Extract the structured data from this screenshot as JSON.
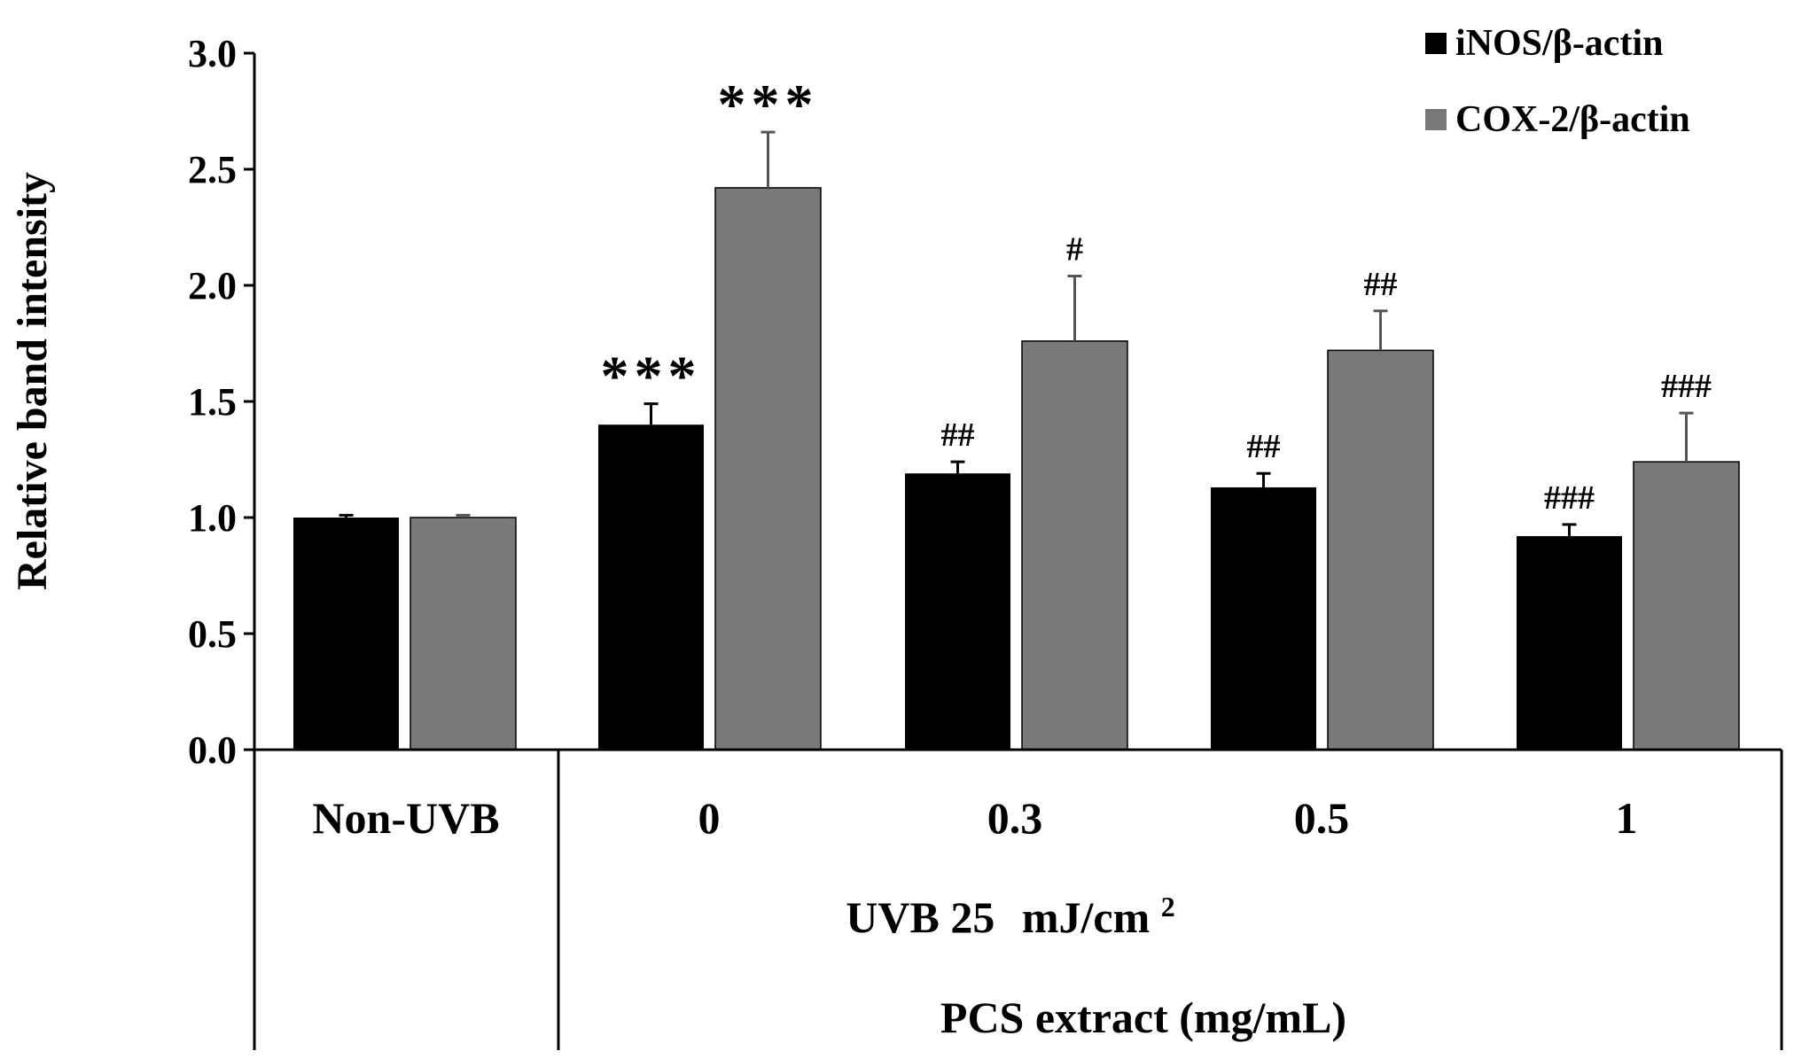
{
  "chart_data": {
    "type": "bar",
    "ylabel": "Relative band intensity",
    "ylim": [
      0,
      3.0
    ],
    "yticks": [
      "0.0",
      "0.5",
      "1.0",
      "1.5",
      "2.0",
      "2.5",
      "3.0"
    ],
    "categories": [
      "Non-UVB",
      "0",
      "0.3",
      "0.5",
      "1"
    ],
    "uvb_label_main": "UVB 25",
    "uvb_label_unit": "mJ/cm",
    "uvb_label_sup": "2",
    "extract_label": "PCS extract (mg/mL)",
    "legend": [
      "iNOS/β-actin",
      "COX-2/β-actin"
    ],
    "colors": {
      "inos": "#000000",
      "cox2": "#7a7878",
      "axis": "#000000"
    },
    "series": [
      {
        "name": "iNOS/β-actin",
        "values": [
          1.0,
          1.4,
          1.19,
          1.13,
          0.92
        ],
        "errors": [
          0.01,
          0.09,
          0.05,
          0.06,
          0.05
        ],
        "annotations": [
          "",
          "***",
          "##",
          "##",
          "###"
        ]
      },
      {
        "name": "COX-2/β-actin",
        "values": [
          1.0,
          2.42,
          1.76,
          1.72,
          1.24
        ],
        "errors": [
          0.01,
          0.24,
          0.28,
          0.17,
          0.21
        ],
        "annotations": [
          "",
          "***",
          "#",
          "##",
          "###"
        ]
      }
    ]
  }
}
